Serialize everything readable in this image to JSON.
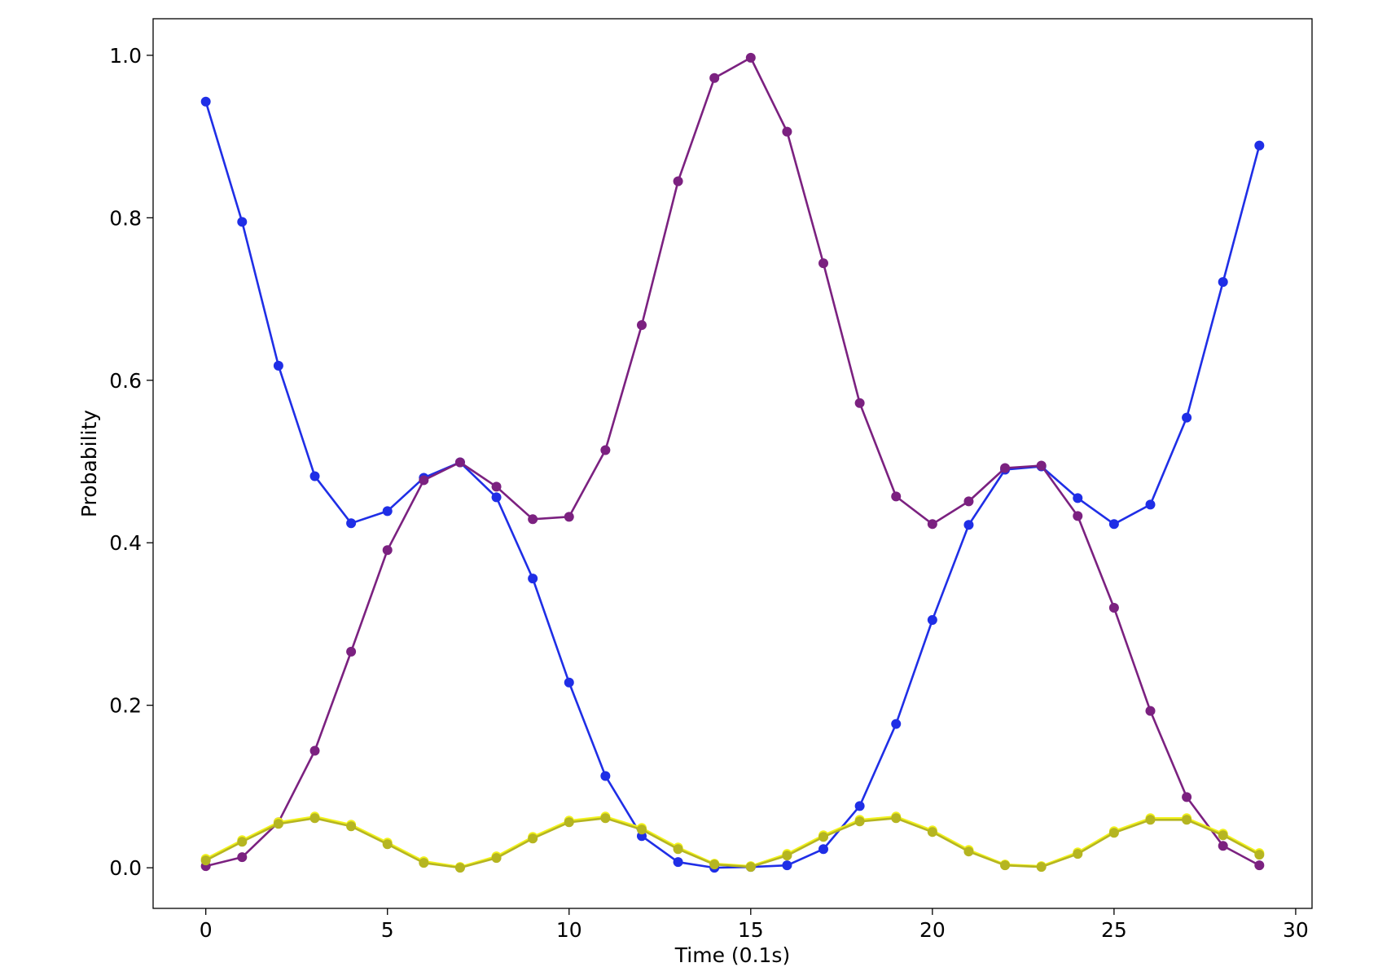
{
  "chart_data": {
    "type": "line",
    "title": "",
    "xlabel": "Time (0.1s)",
    "ylabel": "Probability",
    "xlim": [
      -1.45,
      30.45
    ],
    "ylim": [
      -0.05,
      1.045
    ],
    "xticks": [
      0,
      5,
      10,
      15,
      20,
      25,
      30
    ],
    "yticks": [
      0.0,
      0.2,
      0.4,
      0.6,
      0.8,
      1.0
    ],
    "grid": false,
    "legend": "none",
    "x": [
      0,
      1,
      2,
      3,
      4,
      5,
      6,
      7,
      8,
      9,
      10,
      11,
      12,
      13,
      14,
      15,
      16,
      17,
      18,
      19,
      20,
      21,
      22,
      23,
      24,
      25,
      26,
      27,
      28,
      29
    ],
    "series": [
      {
        "color": "#1f2ee6",
        "marker": "circle",
        "values": [
          0.943,
          0.795,
          0.618,
          0.482,
          0.424,
          0.439,
          0.48,
          0.499,
          0.456,
          0.356,
          0.228,
          0.113,
          0.039,
          0.007,
          0.0,
          0.001,
          0.003,
          0.023,
          0.076,
          0.177,
          0.305,
          0.422,
          0.49,
          0.494,
          0.455,
          0.423,
          0.447,
          0.554,
          0.721,
          0.889
        ]
      },
      {
        "color": "#7b2180",
        "marker": "circle",
        "values": [
          0.002,
          0.013,
          0.056,
          0.144,
          0.266,
          0.391,
          0.477,
          0.499,
          0.469,
          0.429,
          0.432,
          0.514,
          0.668,
          0.845,
          0.972,
          0.997,
          0.906,
          0.744,
          0.572,
          0.457,
          0.423,
          0.451,
          0.492,
          0.495,
          0.433,
          0.32,
          0.193,
          0.087,
          0.027,
          0.003
        ]
      },
      {
        "color": "#f2f21c",
        "marker": "circle",
        "values": [
          0.011,
          0.034,
          0.056,
          0.063,
          0.053,
          0.031,
          0.008,
          0.001,
          0.014,
          0.038,
          0.058,
          0.063,
          0.049,
          0.025,
          0.005,
          0.002,
          0.017,
          0.04,
          0.059,
          0.063,
          0.046,
          0.022,
          0.004,
          0.002,
          0.019,
          0.045,
          0.061,
          0.061,
          0.042,
          0.018
        ]
      },
      {
        "color": "#b5b521",
        "marker": "circle",
        "values": [
          0.009,
          0.032,
          0.054,
          0.061,
          0.051,
          0.029,
          0.006,
          0.0,
          0.012,
          0.036,
          0.056,
          0.061,
          0.047,
          0.023,
          0.004,
          0.001,
          0.015,
          0.038,
          0.057,
          0.061,
          0.044,
          0.02,
          0.003,
          0.001,
          0.017,
          0.043,
          0.059,
          0.059,
          0.04,
          0.016
        ]
      }
    ]
  }
}
